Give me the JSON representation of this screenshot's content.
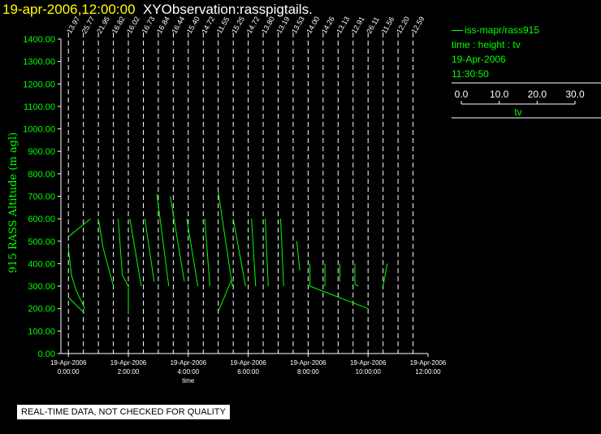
{
  "header": {
    "datetime": "19-apr-2006,12:00:00",
    "title": "XYObservation:rasspigtails."
  },
  "legend": {
    "instrument": "iss-mapr/rass915",
    "variables": "time : height : tv",
    "date": "19-Apr-2006",
    "time": "11:30:50",
    "scale_ticks": [
      "0.0",
      "10.0",
      "20.0",
      "30.0"
    ],
    "scale_label": "tv"
  },
  "footer": {
    "note": "REAL-TIME DATA, NOT CHECKED FOR QUALITY"
  },
  "chart_data": {
    "type": "line",
    "ylabel": "915 RASS Altitude (m agl)",
    "xlabel": "time",
    "ylim": [
      0,
      1400
    ],
    "yticks": [
      "0.00",
      "100.00",
      "200.00",
      "300.00",
      "400.00",
      "500.00",
      "600.00",
      "700.00",
      "800.00",
      "900.00",
      "1000.00",
      "1100.00",
      "1200.00",
      "1300.00",
      "1400.00"
    ],
    "xlim_hours": [
      -0.25,
      12.0
    ],
    "xticks": [
      {
        "hour": 0,
        "date": "19-Apr-2006",
        "time": "0:00:00"
      },
      {
        "hour": 2,
        "date": "19-Apr-2006",
        "time": "2:00:00"
      },
      {
        "hour": 4,
        "date": "19-Apr-2006",
        "time": "4:00:00"
      },
      {
        "hour": 6,
        "date": "19-Apr-2006",
        "time": "6:00:00"
      },
      {
        "hour": 8,
        "date": "19-Apr-2006",
        "time": "8:00:00"
      },
      {
        "hour": 10,
        "date": "19-Apr-2006",
        "time": "10:00:00"
      },
      {
        "hour": 12,
        "date": "19-Apr-2006",
        "time": "12:00:00"
      }
    ],
    "profile_labels": [
      {
        "hour": 0.0,
        "label": "13.97"
      },
      {
        "hour": 0.5,
        "label": "25.77"
      },
      {
        "hour": 1.0,
        "label": "21.95"
      },
      {
        "hour": 1.5,
        "label": "16.82"
      },
      {
        "hour": 2.0,
        "label": "16.02"
      },
      {
        "hour": 2.5,
        "label": "16.73"
      },
      {
        "hour": 3.0,
        "label": "16.84"
      },
      {
        "hour": 3.5,
        "label": "16.44"
      },
      {
        "hour": 4.0,
        "label": "15.40"
      },
      {
        "hour": 4.5,
        "label": "14.72"
      },
      {
        "hour": 5.0,
        "label": "11.55"
      },
      {
        "hour": 5.5,
        "label": "15.25"
      },
      {
        "hour": 6.0,
        "label": "14.72"
      },
      {
        "hour": 6.5,
        "label": "13.80"
      },
      {
        "hour": 7.0,
        "label": "13.19"
      },
      {
        "hour": 7.5,
        "label": "13.53"
      },
      {
        "hour": 8.0,
        "label": "14.00"
      },
      {
        "hour": 8.5,
        "label": "14.26"
      },
      {
        "hour": 9.0,
        "label": "13.13"
      },
      {
        "hour": 9.5,
        "label": "12.91"
      },
      {
        "hour": 10.0,
        "label": "26.11"
      },
      {
        "hour": 10.5,
        "label": "11.56"
      },
      {
        "hour": 11.0,
        "label": "12.20"
      },
      {
        "hour": 11.5,
        "label": "12.59"
      }
    ],
    "series": [
      {
        "hour": 0.0,
        "points": [
          [
            0.0,
            520
          ],
          [
            0.74,
            600
          ]
        ]
      },
      {
        "hour": 0.0,
        "points": [
          [
            0.0,
            470
          ],
          [
            0.1,
            350
          ],
          [
            0.26,
            280
          ],
          [
            0.55,
            200
          ]
        ]
      },
      {
        "hour": 0.0,
        "points": [
          [
            0.0,
            250
          ],
          [
            0.53,
            180
          ]
        ]
      },
      {
        "hour": 1.0,
        "points": [
          [
            1.0,
            600
          ],
          [
            1.16,
            470
          ],
          [
            1.5,
            300
          ]
        ]
      },
      {
        "hour": 1.5,
        "points": [
          [
            1.66,
            600
          ],
          [
            1.8,
            350
          ],
          [
            2.0,
            300
          ],
          [
            2.0,
            180
          ]
        ]
      },
      {
        "hour": 2.0,
        "points": [
          [
            2.05,
            600
          ],
          [
            2.43,
            300
          ]
        ]
      },
      {
        "hour": 2.5,
        "points": [
          [
            2.55,
            600
          ],
          [
            2.86,
            320
          ]
        ]
      },
      {
        "hour": 3.0,
        "points": [
          [
            2.95,
            710
          ],
          [
            3.35,
            300
          ]
        ]
      },
      {
        "hour": 3.5,
        "points": [
          [
            3.4,
            700
          ],
          [
            3.87,
            320
          ]
        ]
      },
      {
        "hour": 4.0,
        "points": [
          [
            3.95,
            600
          ],
          [
            4.32,
            300
          ]
        ]
      },
      {
        "hour": 4.5,
        "points": [
          [
            4.55,
            600
          ],
          [
            4.72,
            300
          ]
        ]
      },
      {
        "hour": 5.0,
        "points": [
          [
            5.0,
            720
          ],
          [
            5.47,
            300
          ]
        ]
      },
      {
        "hour": 5.0,
        "points": [
          [
            5.01,
            190
          ],
          [
            5.45,
            330
          ]
        ]
      },
      {
        "hour": 5.5,
        "points": [
          [
            5.5,
            600
          ],
          [
            5.91,
            300
          ]
        ]
      },
      {
        "hour": 6.0,
        "points": [
          [
            6.11,
            600
          ],
          [
            6.25,
            300
          ]
        ]
      },
      {
        "hour": 6.5,
        "points": [
          [
            6.57,
            600
          ],
          [
            6.67,
            300
          ]
        ]
      },
      {
        "hour": 7.0,
        "points": [
          [
            7.08,
            600
          ],
          [
            7.18,
            300
          ]
        ]
      },
      {
        "hour": 7.5,
        "points": [
          [
            7.62,
            500
          ],
          [
            7.72,
            370
          ]
        ]
      },
      {
        "hour": 8.0,
        "points": [
          [
            8.06,
            400
          ],
          [
            8.06,
            300
          ],
          [
            10.0,
            200
          ]
        ]
      },
      {
        "hour": 8.5,
        "points": [
          [
            8.56,
            400
          ],
          [
            8.56,
            300
          ]
        ]
      },
      {
        "hour": 9.0,
        "points": [
          [
            9.06,
            400
          ],
          [
            9.06,
            320
          ]
        ]
      },
      {
        "hour": 9.5,
        "points": [
          [
            9.56,
            400
          ],
          [
            9.56,
            310
          ],
          [
            9.68,
            300
          ]
        ]
      },
      {
        "hour": 10.5,
        "points": [
          [
            10.64,
            400
          ],
          [
            10.5,
            300
          ]
        ]
      }
    ],
    "colors": {
      "series": "#00ff00",
      "axes": "#ffffff",
      "title_highlight": "#ffff00"
    }
  }
}
